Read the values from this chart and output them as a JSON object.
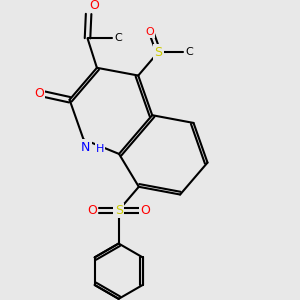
{
  "background_color": "#e8e8e8",
  "bond_color": "#000000",
  "bond_width": 1.5,
  "atom_colors": {
    "O": "#ff0000",
    "S": "#cccc00",
    "N": "#0000ff",
    "C": "#000000"
  },
  "font_size": 9,
  "font_size_small": 8
}
